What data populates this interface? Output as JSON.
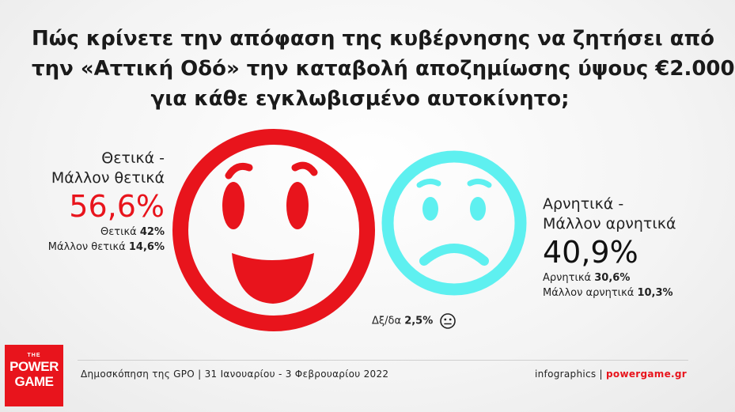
{
  "title_lines": [
    "Πώς κρίνετε την απόφαση της κυβέρνησης να ζητήσει από",
    "την «Αττική Οδό» την καταβολή αποζημίωσης ύψους €2.000",
    "για κάθε εγκλωβισμένο αυτοκίνητο;"
  ],
  "chart_data": {
    "type": "pictogram",
    "categories": [
      {
        "label_line1": "Θετικά -",
        "label_line2": "Μάλλον θετικά",
        "total": "56,6%",
        "total_value": 56.6,
        "icon": "happy-face-icon",
        "color": "#e8141c",
        "breakdown": [
          {
            "label": "Θετικά",
            "value": "42%",
            "number": 42
          },
          {
            "label": "Μάλλον θετικά",
            "value": "14,6%",
            "number": 14.6
          }
        ]
      },
      {
        "label_line1": "Αρνητικά -",
        "label_line2": "Μάλλον αρνητικά",
        "total": "40,9%",
        "total_value": 40.9,
        "icon": "sad-face-icon",
        "color": "#5ef0f0",
        "breakdown": [
          {
            "label": "Αρνητικά",
            "value": "30,6%",
            "number": 30.6
          },
          {
            "label": "Μάλλον αρνητικά",
            "value": "10,3%",
            "number": 10.3
          }
        ]
      }
    ],
    "no_answer": {
      "label": "Δξ/δα",
      "value": "2,5%",
      "number": 2.5,
      "icon": "neutral-face-icon"
    }
  },
  "footer": {
    "source": "Δημοσκόπηση της GPO | 31 Ιανουαρίου - 3 Φεβρουαρίου 2022",
    "credit_prefix": "infographics | ",
    "credit_brand": "powergame.gr"
  },
  "logo": {
    "line0": "THE",
    "line1": "POWER",
    "line2": "GAME"
  }
}
